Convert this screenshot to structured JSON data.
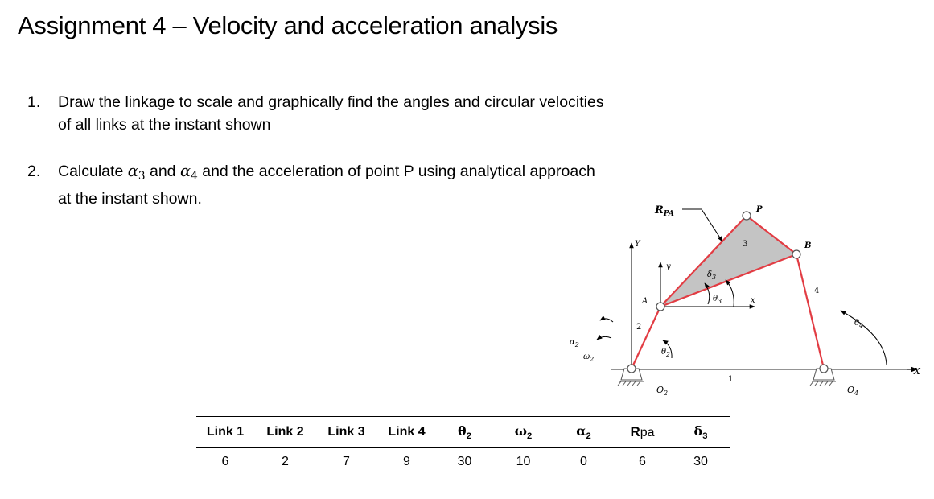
{
  "heading": "Assignment 4 – Velocity and acceleration analysis",
  "items": [
    {
      "number": "1.",
      "line1": "Draw the linkage to scale and graphically find the angles and circular velocities",
      "line2": "of all links at the instant shown"
    },
    {
      "number": "2.",
      "line1_a": "Calculate ",
      "alpha3": "α",
      "alpha3_sub": "3",
      "line1_b": " and ",
      "alpha4": "α",
      "alpha4_sub": "4",
      "line1_c": " and the acceleration of point P using analytical approach",
      "line2": "at the instant shown."
    }
  ],
  "figure": {
    "labels": {
      "RPA": "R",
      "RPA_sub": "PA",
      "P": "P",
      "B": "B",
      "A": "A",
      "Y": "Y",
      "y": "y",
      "x": "x",
      "X": "X",
      "delta3": "δ",
      "delta3_sub": "3",
      "theta3": "θ",
      "theta3_sub": "3",
      "theta2": "θ",
      "theta2_sub": "2",
      "theta4": "θ",
      "theta4_sub": "4",
      "alpha2": "α",
      "alpha2_sub": "2",
      "omega2": "ω",
      "omega2_sub": "2",
      "O2": "O",
      "O2_sub": "2",
      "O4": "O",
      "O4_sub": "4",
      "link1": "1",
      "link2": "2",
      "link3": "3",
      "link4": "4"
    },
    "colors": {
      "link": "#e23c43",
      "coupler_fill": "#c4c4c4",
      "ground": "#555555"
    }
  },
  "table": {
    "headers": [
      {
        "text": "Link 1"
      },
      {
        "text": "Link 2"
      },
      {
        "text": "Link 3"
      },
      {
        "text": "Link 4"
      },
      {
        "text": "θ",
        "sub": "2"
      },
      {
        "text": "ω",
        "sub": "2"
      },
      {
        "text": "α",
        "sub": "2"
      },
      {
        "text": "R",
        "sub": "pa"
      },
      {
        "text": "δ",
        "sub": "3"
      }
    ],
    "values": [
      "6",
      "2",
      "7",
      "9",
      "30",
      "10",
      "0",
      "6",
      "30"
    ]
  }
}
